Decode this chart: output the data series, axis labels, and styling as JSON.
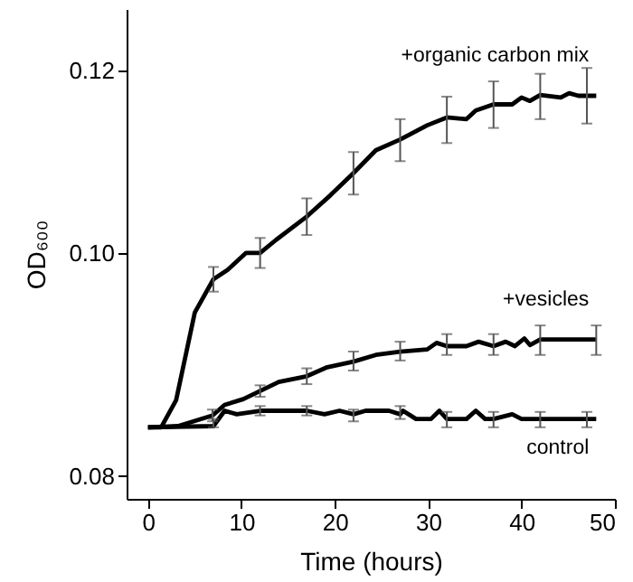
{
  "chart_data": {
    "type": "line",
    "xlabel": "Time (hours)",
    "ylabel": "OD₆₀₀",
    "log": "y",
    "grid": false,
    "marker": "none",
    "line_style": "solid",
    "xlim": [
      -2.3,
      50
    ],
    "xticks": [
      0,
      10,
      20,
      30,
      40,
      50
    ],
    "ylim": [
      0.0782,
      0.1276
    ],
    "yticks": [
      {
        "value": 0.08,
        "label": "0.08"
      },
      {
        "value": 0.1,
        "label": "0.10"
      },
      {
        "value": 0.12,
        "label": "0.12"
      }
    ],
    "series": [
      {
        "name": "+organic carbon mix",
        "color": "#000000",
        "x": [
          0,
          1.4,
          3,
          5,
          7,
          8.5,
          10.5,
          12,
          13.7,
          17,
          19.5,
          22,
          24.4,
          27,
          29.9,
          32,
          34.1,
          35.1,
          37,
          39,
          40,
          40.9,
          42,
          44.2,
          45.1,
          46.1,
          47,
          48
        ],
        "values": [
          0.084,
          0.084,
          0.0863,
          0.0942,
          0.0974,
          0.0983,
          0.1,
          0.1,
          0.1013,
          0.1037,
          0.1059,
          0.1083,
          0.1108,
          0.112,
          0.1136,
          0.1145,
          0.1143,
          0.1153,
          0.116,
          0.116,
          0.1168,
          0.1164,
          0.1171,
          0.1168,
          0.1173,
          0.117,
          0.117,
          0.117
        ],
        "errors": [
          null,
          null,
          null,
          null,
          [
            0.0962,
            0.0986
          ],
          null,
          null,
          [
            0.0985,
            0.1015
          ],
          null,
          [
            0.1018,
            0.1056
          ],
          null,
          [
            0.106,
            0.1106
          ],
          null,
          [
            0.1096,
            0.1143
          ],
          null,
          [
            0.1116,
            0.1169
          ],
          null,
          null,
          [
            0.1133,
            0.1187
          ],
          null,
          null,
          null,
          [
            0.1143,
            0.1196
          ],
          null,
          null,
          null,
          [
            0.1138,
            0.1203
          ],
          null
        ]
      },
      {
        "name": "+vesicles",
        "color": "#000000",
        "x": [
          0,
          3.2,
          6.9,
          8.2,
          10.2,
          12,
          14,
          17,
          19.2,
          22,
          24.4,
          27,
          29.9,
          30.9,
          32,
          34.1,
          35.4,
          37,
          38.3,
          39.3,
          40.3,
          40.9,
          42,
          48
        ],
        "values": [
          0.084,
          0.0841,
          0.085,
          0.0859,
          0.0864,
          0.0871,
          0.0879,
          0.0884,
          0.0892,
          0.0897,
          0.0903,
          0.0906,
          0.0908,
          0.0914,
          0.0911,
          0.0911,
          0.0915,
          0.0911,
          0.0915,
          0.0911,
          0.0918,
          0.0912,
          0.0917,
          0.0917
        ],
        "errors": [
          null,
          null,
          [
            0.0845,
            0.0855
          ],
          null,
          null,
          [
            0.0866,
            0.0876
          ],
          null,
          [
            0.0877,
            0.0891
          ],
          null,
          [
            0.0889,
            0.0906
          ],
          null,
          [
            0.0898,
            0.0915
          ],
          null,
          null,
          [
            0.0903,
            0.0922
          ],
          null,
          null,
          [
            0.0903,
            0.0922
          ],
          null,
          null,
          null,
          null,
          [
            0.0903,
            0.093
          ],
          [
            0.0903,
            0.093
          ]
        ]
      },
      {
        "name": "control",
        "color": "#000000",
        "x": [
          0,
          7,
          8.2,
          9.5,
          12,
          17,
          18.9,
          20.5,
          22,
          23.3,
          25.8,
          27,
          27.3,
          28.7,
          30.3,
          31.2,
          32,
          34.1,
          35.1,
          36.1,
          37,
          39,
          40,
          42,
          47,
          48
        ],
        "values": [
          0.084,
          0.0841,
          0.0854,
          0.0851,
          0.0854,
          0.0854,
          0.0851,
          0.0854,
          0.0851,
          0.0854,
          0.0854,
          0.0851,
          0.0854,
          0.0847,
          0.0847,
          0.0854,
          0.0847,
          0.0847,
          0.0854,
          0.0847,
          0.0847,
          0.0851,
          0.0847,
          0.0847,
          0.0847,
          0.0847
        ],
        "errors": [
          null,
          [
            0.084,
            0.0847
          ],
          null,
          null,
          [
            0.085,
            0.0858
          ],
          [
            0.085,
            0.0858
          ],
          null,
          null,
          [
            0.0845,
            0.0855
          ],
          null,
          null,
          [
            0.0847,
            0.0858
          ],
          null,
          null,
          null,
          null,
          [
            0.084,
            0.0853
          ],
          null,
          null,
          null,
          [
            0.084,
            0.0853
          ],
          null,
          null,
          [
            0.084,
            0.0853
          ],
          [
            0.084,
            0.0853
          ],
          null
        ]
      }
    ]
  }
}
